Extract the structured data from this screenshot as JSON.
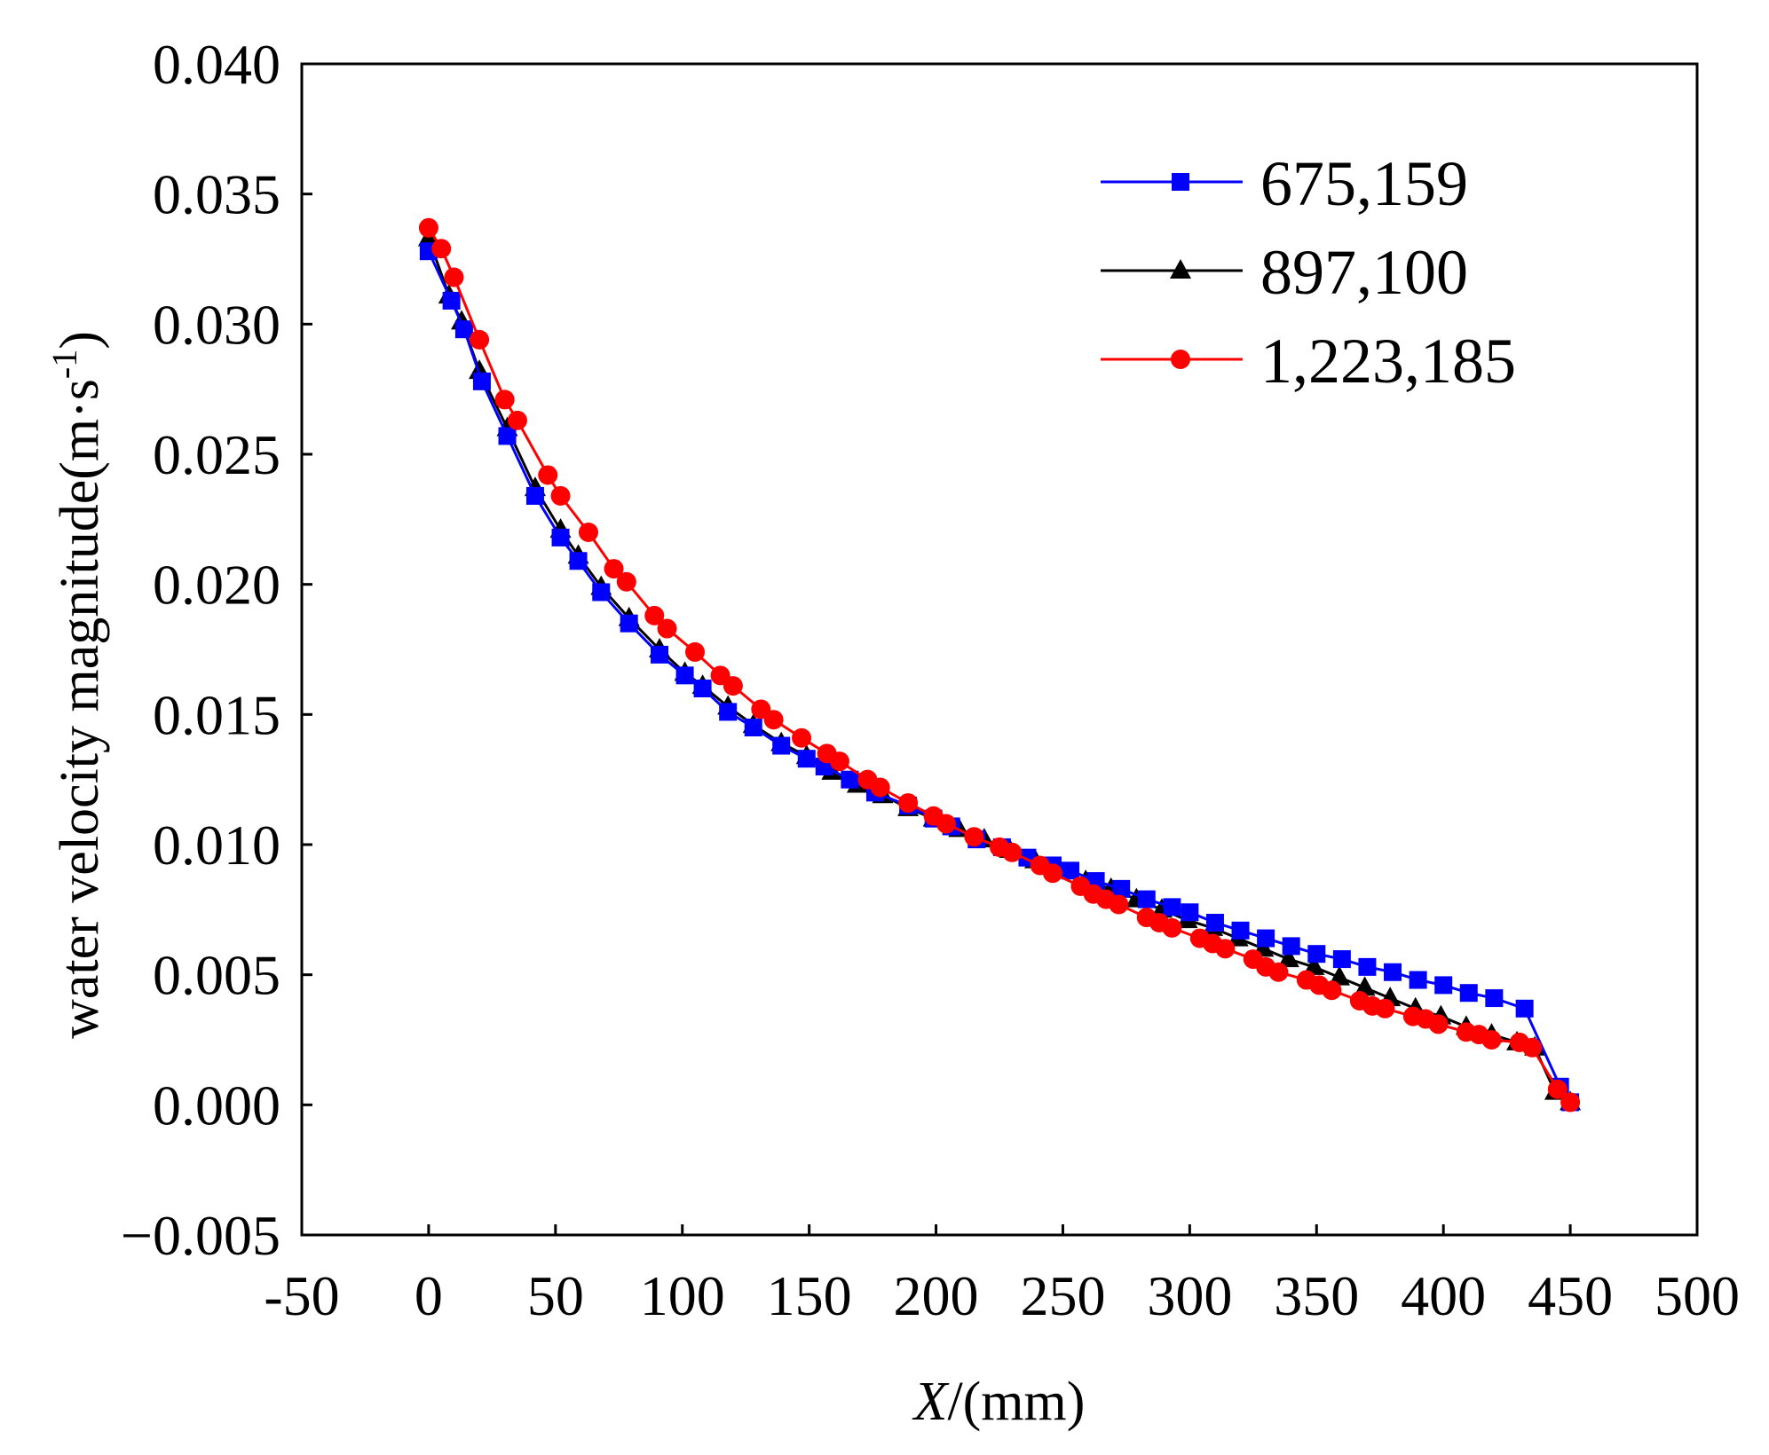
{
  "chart_data": {
    "type": "line",
    "title": "",
    "xlabel_italic": "X",
    "xlabel_rest": "/(mm)",
    "ylabel": "water velocity magnitude(m·s",
    "ylabel_sup": "-1",
    "ylabel_close": ")",
    "xlim": [
      -50,
      500
    ],
    "ylim": [
      -0.005,
      0.04
    ],
    "xticks": [
      -50,
      0,
      50,
      100,
      150,
      200,
      250,
      300,
      350,
      400,
      450,
      500
    ],
    "xtick_labels": [
      "-50",
      "0",
      "50",
      "100",
      "150",
      "200",
      "250",
      "300",
      "350",
      "400",
      "450",
      "500"
    ],
    "yticks": [
      -0.005,
      0.0,
      0.005,
      0.01,
      0.015,
      0.02,
      0.025,
      0.03,
      0.035,
      0.04
    ],
    "ytick_labels": [
      "−0.005",
      "0.000",
      "0.005",
      "0.010",
      "0.015",
      "0.020",
      "0.025",
      "0.030",
      "0.035",
      "0.040"
    ],
    "legend_position": "top-right",
    "series": [
      {
        "name": "675,159",
        "color": "#0000ff",
        "marker": "square",
        "x": [
          0,
          9,
          14,
          21,
          31,
          42,
          52,
          59,
          68,
          79,
          91,
          101,
          108,
          118,
          128,
          139,
          149,
          156,
          166,
          176,
          189,
          199,
          206,
          216,
          226,
          236,
          246,
          253,
          263,
          273,
          283,
          293,
          300,
          310,
          320,
          330,
          340,
          350,
          360,
          370,
          380,
          390,
          400,
          410,
          420,
          432,
          446,
          450
        ],
        "values": [
          0.0328,
          0.0309,
          0.0298,
          0.0278,
          0.0257,
          0.0234,
          0.0218,
          0.0209,
          0.0197,
          0.0185,
          0.0173,
          0.0165,
          0.016,
          0.0151,
          0.0145,
          0.0138,
          0.0133,
          0.013,
          0.0125,
          0.012,
          0.0115,
          0.011,
          0.0107,
          0.0102,
          0.0099,
          0.0095,
          0.0092,
          0.009,
          0.0086,
          0.0083,
          0.0079,
          0.0076,
          0.0074,
          0.007,
          0.0067,
          0.0064,
          0.0061,
          0.0058,
          0.0056,
          0.0053,
          0.0051,
          0.0048,
          0.0046,
          0.0043,
          0.0041,
          0.0037,
          0.0007,
          0.0001
        ]
      },
      {
        "name": "897,100",
        "color": "#000000",
        "marker": "triangle",
        "x": [
          0,
          8,
          13,
          20,
          31,
          42,
          52,
          59,
          68,
          79,
          91,
          101,
          108,
          118,
          128,
          139,
          149,
          159,
          169,
          179,
          189,
          199,
          209,
          219,
          229,
          239,
          249,
          259,
          269,
          279,
          289,
          299,
          309,
          319,
          329,
          339,
          349,
          359,
          369,
          379,
          389,
          399,
          409,
          419,
          429,
          436,
          444,
          450
        ],
        "values": [
          0.0333,
          0.0311,
          0.0301,
          0.0282,
          0.026,
          0.0237,
          0.0221,
          0.0211,
          0.0199,
          0.0187,
          0.0175,
          0.0166,
          0.0161,
          0.0153,
          0.0146,
          0.0139,
          0.0134,
          0.0128,
          0.0123,
          0.0119,
          0.0114,
          0.011,
          0.0106,
          0.0102,
          0.0098,
          0.0094,
          0.009,
          0.0086,
          0.0083,
          0.0079,
          0.0075,
          0.0071,
          0.0068,
          0.0064,
          0.006,
          0.0056,
          0.0053,
          0.0049,
          0.0045,
          0.0041,
          0.0037,
          0.0034,
          0.003,
          0.0027,
          0.0024,
          0.0022,
          0.0005,
          0.0001
        ]
      },
      {
        "name": "1,223,185",
        "color": "#ff0000",
        "marker": "circle",
        "x": [
          0,
          5,
          10,
          20,
          30,
          35,
          47,
          52,
          63,
          73,
          78,
          89,
          94,
          105,
          115,
          120,
          131,
          136,
          147,
          157,
          162,
          173,
          178,
          189,
          199,
          204,
          215,
          225,
          230,
          241,
          246,
          257,
          262,
          267,
          272,
          283,
          288,
          293,
          304,
          309,
          314,
          325,
          330,
          335,
          346,
          351,
          356,
          367,
          372,
          377,
          388,
          393,
          398,
          409,
          414,
          419,
          430,
          435,
          445,
          450
        ],
        "values": [
          0.0337,
          0.0329,
          0.0318,
          0.0294,
          0.0271,
          0.0263,
          0.0242,
          0.0234,
          0.022,
          0.0206,
          0.0201,
          0.0188,
          0.0183,
          0.0174,
          0.0165,
          0.0161,
          0.0152,
          0.0148,
          0.0141,
          0.0135,
          0.0132,
          0.0125,
          0.0122,
          0.0116,
          0.0111,
          0.0108,
          0.0103,
          0.0099,
          0.0097,
          0.0092,
          0.0089,
          0.0084,
          0.0081,
          0.0079,
          0.0077,
          0.0072,
          0.007,
          0.0068,
          0.0064,
          0.0062,
          0.006,
          0.0056,
          0.0053,
          0.0051,
          0.0048,
          0.0046,
          0.0044,
          0.004,
          0.0038,
          0.0037,
          0.0034,
          0.0033,
          0.0031,
          0.0028,
          0.0027,
          0.0025,
          0.0024,
          0.0022,
          0.0006,
          0.0001
        ]
      }
    ]
  }
}
